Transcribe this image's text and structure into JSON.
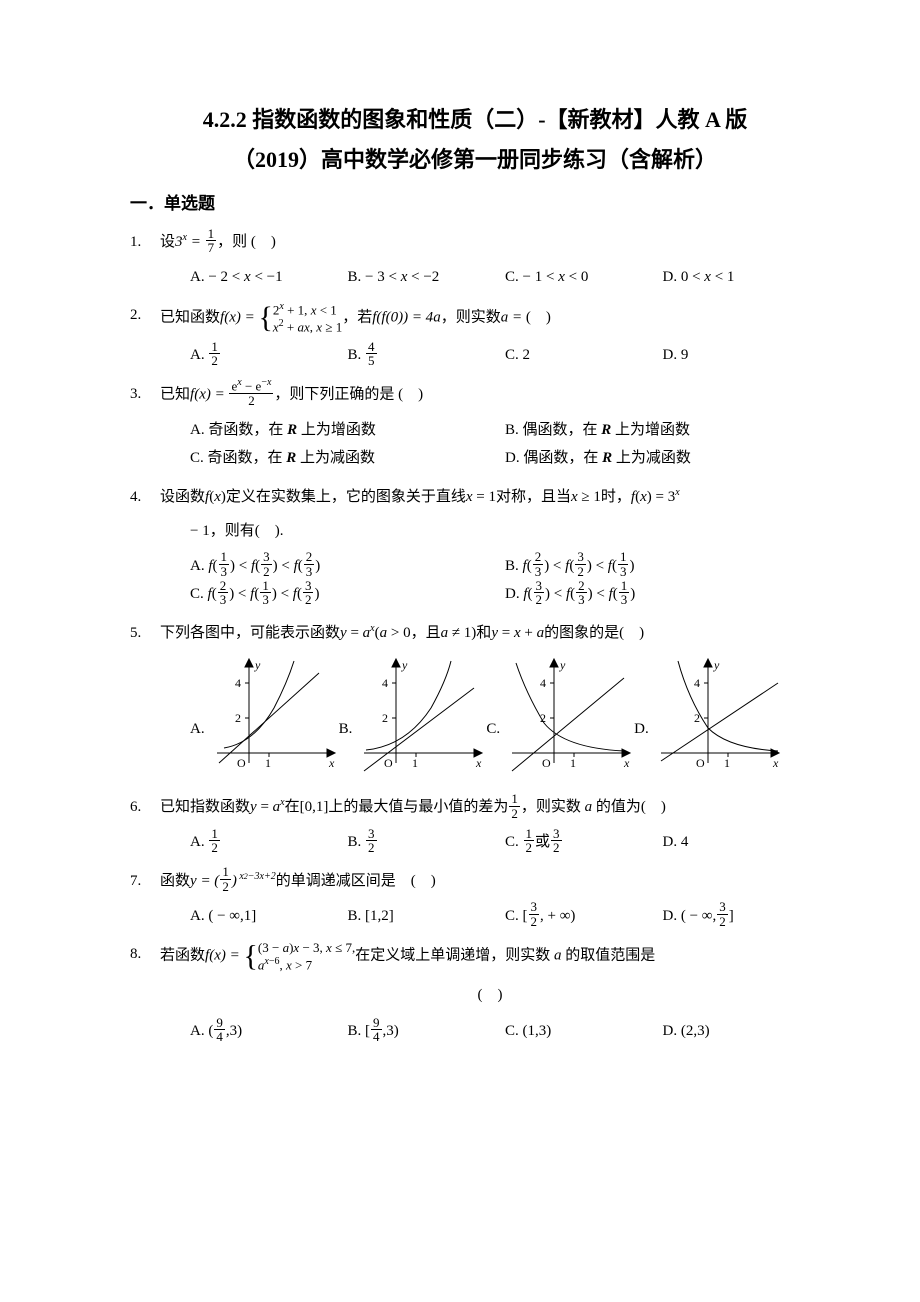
{
  "title_line1": "4.2.2 指数函数的图象和性质（二）-【新教材】人教 A 版",
  "title_line2": "（2019）高中数学必修第一册同步练习（含解析）",
  "section": "一．单选题",
  "paren": "(　)",
  "questions": {
    "q1": {
      "num": "1.",
      "stem_pre": "设",
      "stem_math": "3<span class='sup'><i>x</i></span> = ",
      "stem_post": "，则 (　)",
      "A": "A.  − 2 < <i>x</i> < −1",
      "B": "B.  − 3 < <i>x</i> < −2",
      "C": "C.  − 1 < <i>x</i> < 0",
      "D": "D.  0 < <i>x</i> < 1"
    },
    "q2": {
      "num": "2.",
      "stem_pre": "已知函数",
      "stem_post1": "，若",
      "stem_post2": "，则实数",
      "A_label": "A. ",
      "B_label": "B. ",
      "C": "C. 2",
      "D": "D. 9"
    },
    "q3": {
      "num": "3.",
      "stem_pre": "已知",
      "stem_post": "，则下列正确的是  (　)",
      "A": "A. 奇函数，在 <span class='bolditalic'>R</span> 上为增函数",
      "B": "B. 偶函数，在 <span class='bolditalic'>R</span> 上为增函数",
      "C": "C. 奇函数，在 <span class='bolditalic'>R</span> 上为减函数",
      "D": "D. 偶函数，在 <span class='bolditalic'>R</span> 上为减函数"
    },
    "q4": {
      "num": "4.",
      "stem1": "设函数<i>f</i>(<i>x</i>)定义在实数集上，它的图象关于直线<i>x</i> = 1对称，且当<i>x</i> ≥ 1时，<i>f</i>(<i>x</i>) = 3<span class='sup'><i>x</i></span>",
      "stem2": "− 1，则有(　).",
      "A_pre": "A. ",
      "B_pre": "B. ",
      "C_pre": "C. ",
      "D_pre": "D. "
    },
    "q5": {
      "num": "5.",
      "stem": "下列各图中，可能表示函数<i>y</i> = <i>a</i><span class='sup'><i>x</i></span>(<i>a</i> > 0，且<i>a</i> ≠ 1)和<i>y</i> = <i>x</i> + <i>a</i>的图象的是(　)",
      "A": "A.",
      "B": "B.",
      "C": "C.",
      "D": "D."
    },
    "q6": {
      "num": "6.",
      "stem_pre": "已知指数函数<i>y</i> = <i>a</i><span class='sup'><i>x</i></span>在[0,1]上的最大值与最小值的差为",
      "stem_post": "，则实数 <i>a</i> 的值为(　)",
      "A_label": "A. ",
      "B_label": "B. ",
      "C_label": "C. ",
      "C_mid": "或",
      "D": "D. 4"
    },
    "q7": {
      "num": "7.",
      "stem_pre": "函数",
      "stem_post": "的单调递减区间是　(　)",
      "A": "A. ( − ∞,1]",
      "B": "B. [1,2]",
      "C_pre": "C. [",
      "C_post": ", + ∞)",
      "D_pre": "D. ( − ∞,",
      "D_post": "]"
    },
    "q8": {
      "num": "8.",
      "stem_pre": "若函数",
      "stem_post": "在定义域上单调递增，则实数 <i>a</i> 的取值范围是",
      "A_pre": "A. (",
      "A_post": ",3)",
      "B_pre": "B. [",
      "B_post": ",3)",
      "C": "C. (1,3)",
      "D": "D. (2,3)"
    }
  },
  "fractions": {
    "one_seven": {
      "n": "1",
      "d": "7"
    },
    "one_two": {
      "n": "1",
      "d": "2"
    },
    "four_five": {
      "n": "4",
      "d": "5"
    },
    "one_three": {
      "n": "1",
      "d": "3"
    },
    "three_two": {
      "n": "3",
      "d": "2"
    },
    "two_three": {
      "n": "2",
      "d": "3"
    },
    "nine_four": {
      "n": "9",
      "d": "4"
    }
  },
  "graph": {
    "width": 130,
    "height": 130,
    "axis_color": "#000000",
    "curve_color": "#000000",
    "tick_labels": {
      "y4": "4",
      "y2": "2",
      "x1": "1",
      "O": "O",
      "xlabel": "x",
      "ylabel": "y"
    },
    "label_fontsize": 12
  }
}
